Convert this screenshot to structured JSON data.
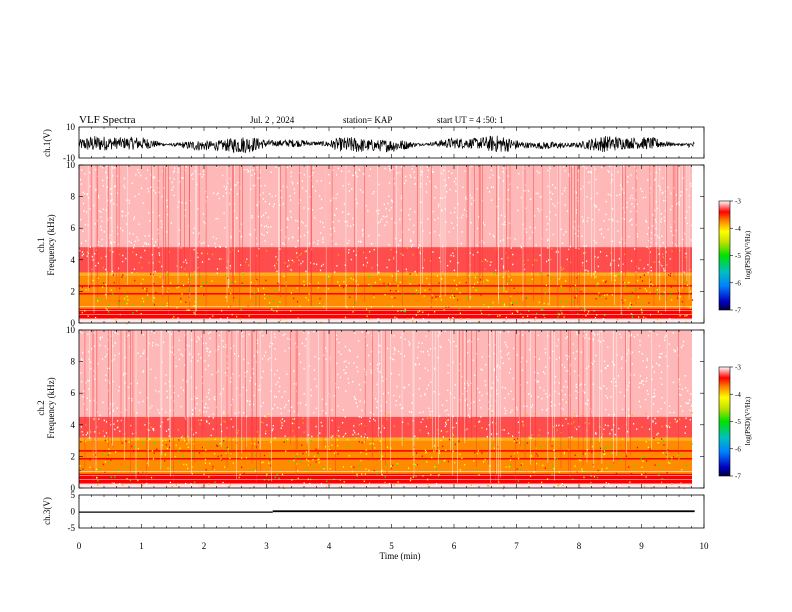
{
  "header": {
    "title": "VLF Spectra",
    "date": "Jul. 2 , 2024",
    "station": "station= KAP",
    "start": "start UT = 4 :50: 1"
  },
  "colors": {
    "spectrum_low": "#ff0000",
    "spectrum_mid": "#ffff00",
    "spectrum_high": "#00ff00",
    "waveform": "#000000"
  },
  "chart_data": [
    {
      "type": "line",
      "panel": "ch1-waveform",
      "ylabel": "ch.1(V)",
      "ylim": [
        -10,
        10
      ],
      "y_tick_labels": [
        "10",
        "-10"
      ],
      "xlim": [
        0,
        10
      ],
      "x_units": "min",
      "description_values": {
        "amplitude_band": [
          -5,
          5
        ],
        "ends_at": 9.85
      }
    },
    {
      "type": "heatmap",
      "panel": "ch1-spectrogram",
      "ylabel": "ch.1 Frequency (kHz)",
      "ylim": [
        0,
        10
      ],
      "y_tick_labels": [
        "0",
        "2",
        "4",
        "6",
        "8",
        "10"
      ],
      "xlim": [
        0,
        10
      ],
      "colorbar": {
        "label": "log(PSD)(V²/Hz)",
        "range": [
          -7,
          -3
        ],
        "tick_labels": [
          "-3",
          "-4",
          "-5",
          "-6",
          "-7"
        ]
      },
      "bands_khz": {
        "strong": [
          0.5,
          3.0
        ],
        "moderate": [
          3.0,
          4.8
        ],
        "weak": [
          4.8,
          10
        ]
      }
    },
    {
      "type": "heatmap",
      "panel": "ch2-spectrogram",
      "ylabel": "ch.2 Frequency (kHz)",
      "ylim": [
        0,
        10
      ],
      "y_tick_labels": [
        "0",
        "2",
        "4",
        "6",
        "8",
        "10"
      ],
      "xlim": [
        0,
        10
      ],
      "colorbar": {
        "label": "log(PSD)(V²/Hz)",
        "range": [
          -7,
          -3
        ],
        "tick_labels": [
          "-3",
          "-4",
          "-5",
          "-6",
          "-7"
        ]
      },
      "bands_khz": {
        "strong": [
          0.5,
          3.0
        ],
        "moderate": [
          3.0,
          4.5
        ],
        "weak": [
          4.5,
          10
        ]
      }
    },
    {
      "type": "line",
      "panel": "ch3-waveform",
      "ylabel": "ch.3(V)",
      "ylim": [
        -5,
        5
      ],
      "y_tick_labels": [
        "5",
        "0",
        "-5"
      ],
      "xlim": [
        0,
        10
      ],
      "segments": [
        {
          "x": [
            0,
            3.1
          ],
          "y": -0.2
        },
        {
          "x": [
            3.1,
            9.85
          ],
          "y_low": -0.2,
          "y_high": 0.35
        }
      ]
    }
  ],
  "x_axis": {
    "label": "Time (min)",
    "tick_labels": [
      "0",
      "1",
      "2",
      "3",
      "4",
      "5",
      "6",
      "7",
      "8",
      "9",
      "10"
    ]
  }
}
